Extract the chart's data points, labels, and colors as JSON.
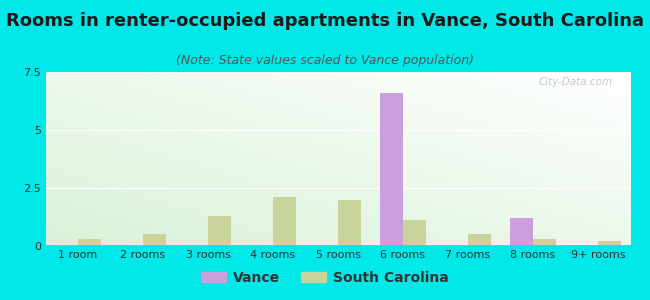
{
  "title": "Rooms in renter-occupied apartments in Vance, South Carolina",
  "subtitle": "(Note: State values scaled to Vance population)",
  "categories": [
    "1 room",
    "2 rooms",
    "3 rooms",
    "4 rooms",
    "5 rooms",
    "6 rooms",
    "7 rooms",
    "8 rooms",
    "9+ rooms"
  ],
  "vance_values": [
    0,
    0,
    0,
    0,
    0,
    6.6,
    0,
    1.2,
    0
  ],
  "sc_values": [
    0.3,
    0.5,
    1.3,
    2.1,
    2.0,
    1.1,
    0.5,
    0.3,
    0.2
  ],
  "vance_color": "#c9a0dc",
  "sc_color": "#c8d49a",
  "background_color": "#00e8e8",
  "ylim": [
    0,
    7.5
  ],
  "yticks": [
    0,
    2.5,
    5,
    7.5
  ],
  "bar_width": 0.35,
  "title_fontsize": 13,
  "subtitle_fontsize": 9,
  "tick_fontsize": 8,
  "legend_fontsize": 10
}
